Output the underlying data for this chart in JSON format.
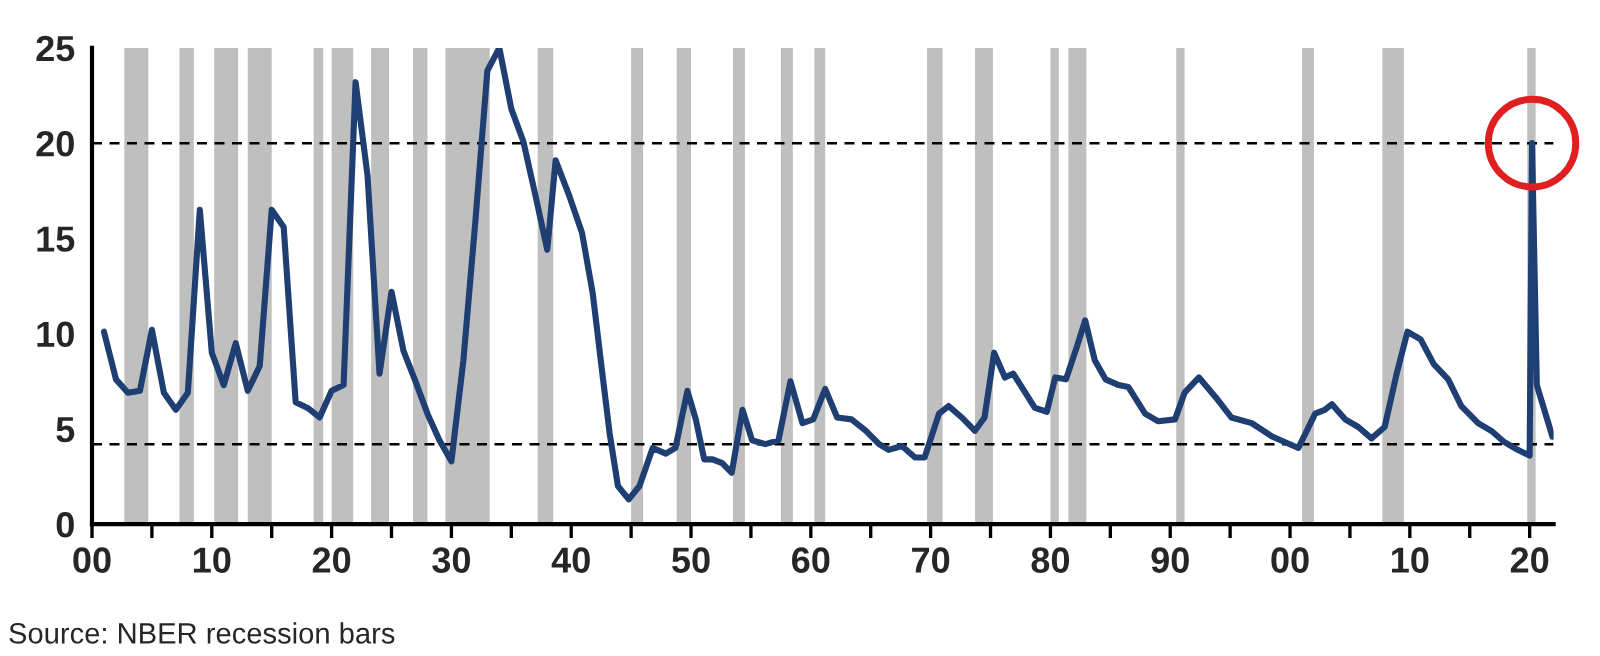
{
  "chart_data": {
    "type": "line",
    "x": [
      1901,
      1902,
      1903,
      1904,
      1905,
      1906,
      1907,
      1908,
      1909,
      1910,
      1911,
      1912,
      1913,
      1914,
      1915,
      1916,
      1917,
      1918,
      1919,
      1920,
      1921,
      1922,
      1923,
      1924,
      1925,
      1926,
      1927,
      1928,
      1929,
      1930,
      1931,
      1932,
      1933,
      1934,
      1935,
      1936,
      1937,
      1938,
      1938.7,
      1939.8,
      1940.9,
      1941.8,
      1942.6,
      1943.2,
      1943.9,
      1944.8,
      1945.7,
      1946.8,
      1947.9,
      1948.7,
      1949.7,
      1950.4,
      1951.1,
      1951.8,
      1952.6,
      1953.4,
      1954.3,
      1955.1,
      1956.2,
      1957.3,
      1958.3,
      1959.3,
      1960.2,
      1961.2,
      1962.2,
      1963.4,
      1964.6,
      1965.7,
      1966.5,
      1967.6,
      1968.7,
      1969.5,
      1970.7,
      1971.5,
      1972.6,
      1973.7,
      1974.5,
      1975.3,
      1976.2,
      1976.9,
      1977.9,
      1978.7,
      1979.7,
      1980.4,
      1981.3,
      1982.2,
      1982.9,
      1983.7,
      1984.6,
      1985.7,
      1986.5,
      1987.9,
      1989.0,
      1990.4,
      1991.2,
      1992.4,
      1994.0,
      1995.1,
      1996.8,
      1998.5,
      2000.7,
      2002.1,
      2002.9,
      2003.5,
      2004.6,
      2005.7,
      2006.8,
      2007.9,
      2008.9,
      2009.8,
      2010.9,
      2012.0,
      2013.2,
      2014.3,
      2015.7,
      2016.8,
      2017.9,
      2019.0,
      2020.0,
      2020.2,
      2020.6,
      2021.9
    ],
    "series": [
      {
        "color": "#1f3f73",
        "values": [
          10.1,
          7.6,
          6.9,
          7.0,
          10.2,
          6.9,
          6.0,
          6.9,
          16.5,
          9.0,
          7.3,
          9.5,
          7.0,
          8.3,
          16.5,
          15.6,
          6.4,
          6.1,
          5.6,
          7.0,
          7.3,
          23.2,
          18.3,
          7.9,
          12.2,
          9.1,
          7.5,
          5.8,
          4.4,
          3.3,
          8.6,
          15.9,
          23.8,
          25.0,
          21.8,
          20.1,
          17.3,
          14.4,
          19.1,
          17.3,
          15.3,
          12.1,
          7.9,
          4.8,
          2.0,
          1.3,
          2.0,
          4.0,
          3.7,
          4.0,
          7.0,
          5.5,
          3.4,
          3.4,
          3.2,
          2.7,
          6.0,
          4.4,
          4.2,
          4.4,
          7.5,
          5.3,
          5.5,
          7.1,
          5.6,
          5.5,
          4.9,
          4.2,
          3.9,
          4.1,
          3.5,
          3.5,
          5.8,
          6.2,
          5.6,
          4.9,
          5.6,
          9.0,
          7.7,
          7.9,
          6.9,
          6.1,
          5.9,
          7.7,
          7.6,
          9.3,
          10.7,
          8.6,
          7.6,
          7.3,
          7.2,
          5.8,
          5.4,
          5.5,
          6.9,
          7.7,
          6.5,
          5.6,
          5.3,
          4.6,
          4.0,
          5.8,
          6.0,
          6.3,
          5.5,
          5.1,
          4.5,
          5.1,
          7.9,
          10.1,
          9.7,
          8.4,
          7.6,
          6.2,
          5.3,
          4.9,
          4.3,
          3.9,
          3.6,
          20.0,
          7.3,
          4.6
        ]
      }
    ],
    "xlim": [
      1900,
      2022
    ],
    "xticks": [
      {
        "value": 1900,
        "label": "00"
      },
      {
        "value": 1905,
        "label": null
      },
      {
        "value": 1910,
        "label": "10"
      },
      {
        "value": 1915,
        "label": null
      },
      {
        "value": 1920,
        "label": "20"
      },
      {
        "value": 1925,
        "label": null
      },
      {
        "value": 1930,
        "label": "30"
      },
      {
        "value": 1935,
        "label": null
      },
      {
        "value": 1940,
        "label": "40"
      },
      {
        "value": 1945,
        "label": null
      },
      {
        "value": 1950,
        "label": "50"
      },
      {
        "value": 1955,
        "label": null
      },
      {
        "value": 1960,
        "label": "60"
      },
      {
        "value": 1965,
        "label": null
      },
      {
        "value": 1970,
        "label": "70"
      },
      {
        "value": 1975,
        "label": null
      },
      {
        "value": 1980,
        "label": "80"
      },
      {
        "value": 1985,
        "label": null
      },
      {
        "value": 1990,
        "label": "90"
      },
      {
        "value": 1995,
        "label": null
      },
      {
        "value": 2000,
        "label": "00"
      },
      {
        "value": 2005,
        "label": null
      },
      {
        "value": 2010,
        "label": "10"
      },
      {
        "value": 2015,
        "label": null
      },
      {
        "value": 2020,
        "label": "20"
      }
    ],
    "ylim": [
      0,
      25
    ],
    "yticks": [
      0,
      5,
      10,
      15,
      20,
      25
    ],
    "grid": false,
    "ref_lines": [
      {
        "axis": "y",
        "value": 20,
        "line_style": "dashed",
        "color": "#000000"
      },
      {
        "axis": "y",
        "value": 4.2,
        "line_style": "dashed",
        "color": "#000000"
      }
    ],
    "bands": [
      {
        "axis": "x",
        "from": 1902.7,
        "to": 1904.7,
        "color": "#bfbfbf"
      },
      {
        "axis": "x",
        "from": 1907.3,
        "to": 1908.5,
        "color": "#bfbfbf"
      },
      {
        "axis": "x",
        "from": 1910.2,
        "to": 1912.2,
        "color": "#bfbfbf"
      },
      {
        "axis": "x",
        "from": 1913.0,
        "to": 1915.0,
        "color": "#bfbfbf"
      },
      {
        "axis": "x",
        "from": 1918.5,
        "to": 1919.3,
        "color": "#bfbfbf"
      },
      {
        "axis": "x",
        "from": 1920.0,
        "to": 1921.8,
        "color": "#bfbfbf"
      },
      {
        "axis": "x",
        "from": 1923.3,
        "to": 1924.8,
        "color": "#bfbfbf"
      },
      {
        "axis": "x",
        "from": 1926.8,
        "to": 1928.0,
        "color": "#bfbfbf"
      },
      {
        "axis": "x",
        "from": 1929.5,
        "to": 1933.2,
        "color": "#bfbfbf"
      },
      {
        "axis": "x",
        "from": 1937.2,
        "to": 1938.5,
        "color": "#bfbfbf"
      },
      {
        "axis": "x",
        "from": 1945.0,
        "to": 1946.0,
        "color": "#bfbfbf"
      },
      {
        "axis": "x",
        "from": 1948.8,
        "to": 1950.0,
        "color": "#bfbfbf"
      },
      {
        "axis": "x",
        "from": 1953.5,
        "to": 1954.5,
        "color": "#bfbfbf"
      },
      {
        "axis": "x",
        "from": 1957.5,
        "to": 1958.5,
        "color": "#bfbfbf"
      },
      {
        "axis": "x",
        "from": 1960.3,
        "to": 1961.2,
        "color": "#bfbfbf"
      },
      {
        "axis": "x",
        "from": 1969.7,
        "to": 1971.0,
        "color": "#bfbfbf"
      },
      {
        "axis": "x",
        "from": 1973.7,
        "to": 1975.2,
        "color": "#bfbfbf"
      },
      {
        "axis": "x",
        "from": 1980.0,
        "to": 1980.7,
        "color": "#bfbfbf"
      },
      {
        "axis": "x",
        "from": 1981.5,
        "to": 1983.0,
        "color": "#bfbfbf"
      },
      {
        "axis": "x",
        "from": 1990.5,
        "to": 1991.2,
        "color": "#bfbfbf"
      },
      {
        "axis": "x",
        "from": 2001.0,
        "to": 2002.0,
        "color": "#bfbfbf"
      },
      {
        "axis": "x",
        "from": 2007.7,
        "to": 2009.5,
        "color": "#bfbfbf"
      },
      {
        "axis": "x",
        "from": 2019.8,
        "to": 2020.5,
        "color": "#bfbfbf"
      }
    ],
    "annotations": [
      "Source: NBER recession bars"
    ]
  }
}
